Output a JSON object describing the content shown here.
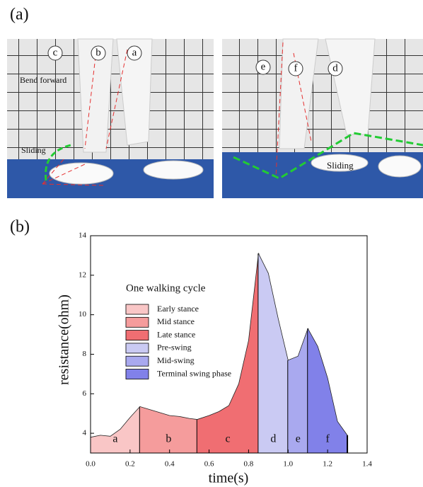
{
  "panel_a": {
    "label": "(a)",
    "left_photo": {
      "markers": [
        "c",
        "b",
        "a"
      ],
      "notes": [
        "Bend forward",
        "Sliding"
      ]
    },
    "right_photo": {
      "markers": [
        "e",
        "f",
        "d"
      ],
      "notes": [
        "Sliding"
      ]
    }
  },
  "panel_b": {
    "label": "(b)"
  },
  "chart_data": {
    "type": "area",
    "x_label": "time(s)",
    "y_label": "resistance(ohm)",
    "legend_title": "One walking cycle",
    "x": [
      0,
      0.05,
      0.1,
      0.15,
      0.2,
      0.25,
      0.3,
      0.4,
      0.45,
      0.5,
      0.54,
      0.6,
      0.65,
      0.7,
      0.75,
      0.8,
      0.85,
      0.9,
      0.95,
      1.0,
      1.05,
      1.1,
      1.15,
      1.2,
      1.25,
      1.3
    ],
    "values": [
      3.8,
      3.9,
      3.85,
      4.2,
      4.8,
      5.35,
      5.2,
      4.9,
      4.85,
      4.75,
      4.7,
      4.9,
      5.1,
      5.4,
      6.5,
      8.7,
      13.1,
      12.1,
      9.8,
      7.7,
      7.9,
      9.3,
      8.4,
      6.8,
      4.6,
      3.9
    ],
    "phases": [
      {
        "name": "Early stance",
        "label": "a",
        "color": "#f9c6c6",
        "range": [
          0,
          0.25
        ]
      },
      {
        "name": "Mid stance",
        "label": "b",
        "color": "#f59c9c",
        "range": [
          0.25,
          0.54
        ]
      },
      {
        "name": "Late stance",
        "label": "c",
        "color": "#f06e72",
        "range": [
          0.54,
          0.85
        ]
      },
      {
        "name": "Pre-swing",
        "label": "d",
        "color": "#cacaf3",
        "range": [
          0.85,
          1.0
        ]
      },
      {
        "name": "Mid-swing",
        "label": "e",
        "color": "#a9a9ef",
        "range": [
          1.0,
          1.1
        ]
      },
      {
        "name": "Terminal swing phase",
        "label": "f",
        "color": "#8181e9",
        "range": [
          1.1,
          1.3
        ]
      }
    ],
    "xlim": [
      0,
      1.4
    ],
    "ylim": [
      3,
      14
    ],
    "xticks": [
      {
        "value": 0,
        "label": "0.0"
      },
      0.2,
      0.4,
      0.6,
      0.8,
      {
        "value": 1,
        "label": "1.0"
      },
      1.2,
      1.4
    ],
    "yticks": [
      4,
      6,
      8,
      10,
      12,
      14
    ]
  }
}
